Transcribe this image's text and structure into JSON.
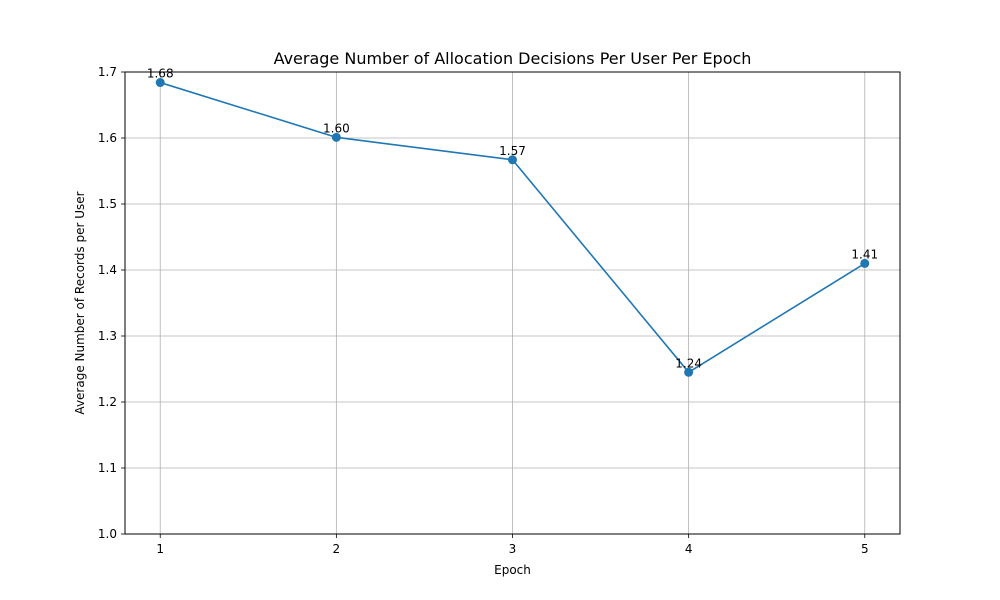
{
  "chart_data": {
    "type": "line",
    "title": "Average Number of Allocation Decisions Per User Per Epoch",
    "xlabel": "Epoch",
    "ylabel": "Average Number of Records per User",
    "x": [
      1,
      2,
      3,
      4,
      5
    ],
    "x_tick_labels": [
      "1",
      "2",
      "3",
      "4",
      "5"
    ],
    "xlim": [
      0.8,
      5.2
    ],
    "ylim": [
      1.0,
      1.7
    ],
    "y_ticks": [
      1.0,
      1.1,
      1.2,
      1.3,
      1.4,
      1.5,
      1.6,
      1.7
    ],
    "y_tick_labels": [
      "1.0",
      "1.1",
      "1.2",
      "1.3",
      "1.4",
      "1.5",
      "1.6",
      "1.7"
    ],
    "series": [
      {
        "values": [
          1.684,
          1.601,
          1.567,
          1.245,
          1.41
        ],
        "data_labels": [
          "1.68",
          "1.60",
          "1.57",
          "1.24",
          "1.41"
        ],
        "color": "#1f77b4",
        "marker": "circle"
      }
    ],
    "grid": true
  }
}
